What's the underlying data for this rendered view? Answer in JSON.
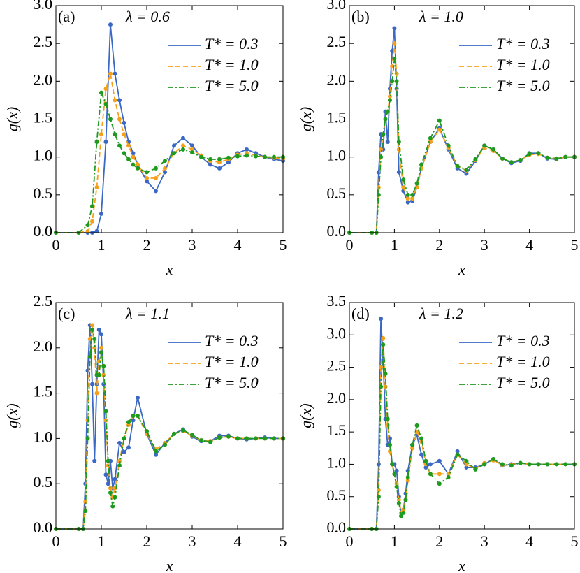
{
  "chart_data": [
    {
      "type": "line",
      "label": "(a)",
      "annotation": "λ = 0.6",
      "xlabel": "x",
      "ylabel": "g(x)",
      "xlim": [
        0,
        5
      ],
      "xticks": [
        0,
        1,
        2,
        3,
        4,
        5
      ],
      "ylim": [
        0,
        3
      ],
      "yticks": [
        {
          "value": 0,
          "label": "0.0"
        },
        {
          "value": 0.5,
          "label": "0.5"
        },
        {
          "value": 1,
          "label": "1.0"
        },
        {
          "value": 1.5,
          "label": "1.5"
        },
        {
          "value": 2,
          "label": "2.0"
        },
        {
          "value": 2.5,
          "label": "2.5"
        },
        {
          "value": 3,
          "label": "3.0"
        }
      ],
      "x": [
        0,
        0.5,
        0.7,
        0.8,
        0.9,
        1.0,
        1.1,
        1.2,
        1.3,
        1.4,
        1.5,
        1.6,
        1.7,
        1.8,
        2.0,
        2.2,
        2.4,
        2.6,
        2.8,
        3.0,
        3.2,
        3.4,
        3.6,
        3.8,
        4.0,
        4.2,
        4.4,
        4.6,
        4.8,
        5.0
      ],
      "series": [
        {
          "name": "T* = 0.3",
          "color": "#3a68c4",
          "style": "solid",
          "values": [
            0,
            0,
            0,
            0,
            0.02,
            0.25,
            1.2,
            2.75,
            2.1,
            1.75,
            1.45,
            1.2,
            1.05,
            0.9,
            0.68,
            0.55,
            0.8,
            1.15,
            1.25,
            1.15,
            1.0,
            0.9,
            0.85,
            0.93,
            1.05,
            1.1,
            1.05,
            1.0,
            0.97,
            0.95
          ]
        },
        {
          "name": "T* = 1.0",
          "color": "#f5a01a",
          "style": "dashed",
          "values": [
            0,
            0,
            0.02,
            0.15,
            0.6,
            1.3,
            1.9,
            2.1,
            1.75,
            1.5,
            1.3,
            1.15,
            1.0,
            0.9,
            0.72,
            0.72,
            0.85,
            1.05,
            1.15,
            1.1,
            1.02,
            0.95,
            0.93,
            0.97,
            1.03,
            1.05,
            1.02,
            1.0,
            0.99,
            0.98
          ]
        },
        {
          "name": "T* = 5.0",
          "color": "#1e9a1e",
          "style": "dashdot",
          "values": [
            0,
            0,
            0.1,
            0.35,
            1.2,
            1.85,
            1.7,
            1.5,
            1.3,
            1.15,
            1.05,
            0.97,
            0.9,
            0.85,
            0.8,
            0.85,
            0.95,
            1.05,
            1.1,
            1.06,
            1.0,
            0.97,
            0.97,
            0.99,
            1.01,
            1.02,
            1.01,
            1.0,
            1.0,
            1.0
          ]
        }
      ]
    },
    {
      "type": "line",
      "label": "(b)",
      "annotation": "λ = 1.0",
      "xlabel": "x",
      "ylabel": "g(x)",
      "xlim": [
        0,
        5
      ],
      "xticks": [
        0,
        1,
        2,
        3,
        4,
        5
      ],
      "ylim": [
        0,
        3
      ],
      "yticks": [
        {
          "value": 0,
          "label": "0.0"
        },
        {
          "value": 0.5,
          "label": "0.5"
        },
        {
          "value": 1,
          "label": "1.0"
        },
        {
          "value": 1.5,
          "label": "1.5"
        },
        {
          "value": 2,
          "label": "2.0"
        },
        {
          "value": 2.5,
          "label": "2.5"
        },
        {
          "value": 3,
          "label": "3.0"
        }
      ],
      "x": [
        0,
        0.5,
        0.6,
        0.65,
        0.7,
        0.75,
        0.8,
        0.85,
        0.9,
        0.95,
        1.0,
        1.05,
        1.1,
        1.2,
        1.3,
        1.4,
        1.5,
        1.6,
        1.8,
        2.0,
        2.2,
        2.4,
        2.6,
        2.8,
        3.0,
        3.2,
        3.4,
        3.6,
        3.8,
        4.0,
        4.2,
        4.4,
        4.6,
        4.8,
        5.0
      ],
      "series": [
        {
          "name": "T* = 0.3",
          "color": "#3a68c4",
          "style": "solid",
          "values": [
            0,
            0,
            0,
            0.8,
            1.3,
            1.1,
            1.6,
            1.2,
            1.9,
            2.4,
            2.7,
            1.9,
            0.8,
            0.55,
            0.4,
            0.42,
            0.6,
            0.85,
            1.2,
            1.38,
            1.1,
            0.85,
            0.78,
            0.95,
            1.15,
            1.1,
            0.98,
            0.92,
            0.95,
            1.05,
            1.05,
            0.98,
            0.97,
            1.0,
            1.0
          ]
        },
        {
          "name": "T* = 1.0",
          "color": "#f5a01a",
          "style": "dashed",
          "values": [
            0,
            0,
            0,
            0.6,
            1.1,
            1.3,
            1.5,
            1.6,
            1.8,
            2.2,
            2.5,
            2.1,
            1.1,
            0.6,
            0.45,
            0.45,
            0.6,
            0.85,
            1.2,
            1.36,
            1.12,
            0.88,
            0.82,
            0.96,
            1.12,
            1.08,
            0.98,
            0.93,
            0.96,
            1.03,
            1.04,
            0.99,
            0.98,
            1.0,
            1.0
          ]
        },
        {
          "name": "T* = 5.0",
          "color": "#1e9a1e",
          "style": "dashdot",
          "values": [
            0,
            0,
            0,
            0.5,
            1.0,
            1.3,
            1.5,
            1.6,
            1.75,
            2.0,
            2.3,
            2.0,
            1.2,
            0.7,
            0.5,
            0.5,
            0.65,
            0.9,
            1.25,
            1.48,
            1.15,
            0.88,
            0.83,
            0.97,
            1.15,
            1.1,
            0.98,
            0.93,
            0.96,
            1.04,
            1.05,
            0.99,
            0.98,
            1.0,
            1.0
          ]
        }
      ]
    },
    {
      "type": "line",
      "label": "(c)",
      "annotation": "λ = 1.1",
      "xlabel": "x",
      "ylabel": "g(x)",
      "xlim": [
        0,
        5
      ],
      "xticks": [
        0,
        1,
        2,
        3,
        4,
        5
      ],
      "ylim": [
        0,
        2.5
      ],
      "yticks": [
        {
          "value": 0,
          "label": "0.0"
        },
        {
          "value": 0.5,
          "label": "0.5"
        },
        {
          "value": 1,
          "label": "1.0"
        },
        {
          "value": 1.5,
          "label": "1.5"
        },
        {
          "value": 2,
          "label": "2.0"
        },
        {
          "value": 2.5,
          "label": "2.5"
        }
      ],
      "x": [
        0,
        0.5,
        0.6,
        0.65,
        0.7,
        0.75,
        0.8,
        0.85,
        0.9,
        0.95,
        1.0,
        1.05,
        1.1,
        1.15,
        1.2,
        1.25,
        1.3,
        1.4,
        1.5,
        1.6,
        1.7,
        1.8,
        2.0,
        2.2,
        2.4,
        2.6,
        2.8,
        3.0,
        3.2,
        3.4,
        3.6,
        3.8,
        4.0,
        4.2,
        4.4,
        4.6,
        4.8,
        5.0
      ],
      "series": [
        {
          "name": "T* = 0.3",
          "color": "#3a68c4",
          "style": "solid",
          "values": [
            0,
            0,
            0,
            0.5,
            1.75,
            2.25,
            1.6,
            0.75,
            1.6,
            2.2,
            2.15,
            1.6,
            0.6,
            0.5,
            0.75,
            0.45,
            0.55,
            0.95,
            0.85,
            0.9,
            1.2,
            1.45,
            1.05,
            0.82,
            0.95,
            1.05,
            1.1,
            1.02,
            0.97,
            0.97,
            1.03,
            1.03,
            1.0,
            0.99,
            1.0,
            1.01,
            1.0,
            1.0
          ]
        },
        {
          "name": "T* = 1.0",
          "color": "#f5a01a",
          "style": "dashed",
          "values": [
            0,
            0,
            0,
            0.3,
            1.2,
            2.1,
            2.25,
            2.0,
            1.5,
            1.85,
            2.0,
            1.7,
            1.2,
            0.7,
            0.45,
            0.35,
            0.45,
            0.75,
            1.0,
            1.15,
            1.25,
            1.25,
            1.05,
            0.88,
            0.95,
            1.05,
            1.08,
            1.03,
            0.98,
            0.97,
            1.01,
            1.02,
            1.0,
            1.0,
            1.0,
            1.0,
            1.0,
            1.0
          ]
        },
        {
          "name": "T* = 5.0",
          "color": "#1e9a1e",
          "style": "dashdot",
          "values": [
            0,
            0,
            0,
            0.2,
            1.0,
            1.9,
            2.2,
            2.1,
            1.7,
            1.7,
            1.95,
            1.8,
            1.3,
            0.75,
            0.4,
            0.25,
            0.35,
            0.7,
            1.0,
            1.18,
            1.25,
            1.25,
            1.08,
            0.86,
            0.93,
            1.05,
            1.09,
            1.04,
            0.98,
            0.96,
            1.01,
            1.02,
            1.0,
            1.0,
            1.0,
            1.0,
            1.0,
            1.0
          ]
        }
      ]
    },
    {
      "type": "line",
      "label": "(d)",
      "annotation": "λ = 1.2",
      "xlabel": "x",
      "ylabel": "g(x)",
      "xlim": [
        0,
        5
      ],
      "xticks": [
        0,
        1,
        2,
        3,
        4,
        5
      ],
      "ylim": [
        0,
        3.5
      ],
      "yticks": [
        {
          "value": 0,
          "label": "0.0"
        },
        {
          "value": 0.5,
          "label": "0.5"
        },
        {
          "value": 1,
          "label": "1.0"
        },
        {
          "value": 1.5,
          "label": "1.5"
        },
        {
          "value": 2,
          "label": "2.0"
        },
        {
          "value": 2.5,
          "label": "2.5"
        },
        {
          "value": 3,
          "label": "3.0"
        },
        {
          "value": 3.5,
          "label": "3.5"
        }
      ],
      "x": [
        0,
        0.5,
        0.6,
        0.65,
        0.7,
        0.75,
        0.8,
        0.85,
        0.9,
        0.95,
        1.0,
        1.05,
        1.1,
        1.15,
        1.2,
        1.25,
        1.3,
        1.4,
        1.5,
        1.6,
        1.7,
        1.8,
        2.0,
        2.2,
        2.4,
        2.6,
        2.8,
        3.0,
        3.2,
        3.4,
        3.6,
        3.8,
        4.0,
        4.2,
        4.4,
        4.6,
        4.8,
        5.0
      ],
      "series": [
        {
          "name": "T* = 0.3",
          "color": "#3a68c4",
          "style": "solid",
          "values": [
            0,
            0,
            0,
            1.0,
            3.25,
            2.6,
            1.7,
            1.3,
            1.4,
            1.0,
            1.0,
            0.9,
            0.5,
            0.2,
            0.3,
            0.55,
            0.9,
            1.3,
            1.45,
            1.15,
            0.95,
            1.0,
            1.05,
            0.85,
            1.2,
            0.95,
            0.95,
            1.0,
            1.08,
            0.98,
            1.0,
            1.02,
            1.0,
            1.0,
            1.0,
            1.0,
            1.0,
            1.0
          ]
        },
        {
          "name": "T* = 1.0",
          "color": "#f5a01a",
          "style": "dashed",
          "values": [
            0,
            0,
            0,
            0.6,
            2.5,
            2.95,
            2.2,
            1.6,
            1.2,
            1.0,
            0.85,
            0.7,
            0.45,
            0.25,
            0.3,
            0.45,
            0.75,
            1.25,
            1.5,
            1.35,
            1.0,
            0.85,
            0.85,
            0.85,
            1.15,
            1.0,
            0.93,
            1.02,
            1.06,
            0.99,
            0.99,
            1.02,
            1.0,
            1.0,
            1.0,
            1.0,
            1.0,
            1.0
          ]
        },
        {
          "name": "T* = 5.0",
          "color": "#1e9a1e",
          "style": "dashdot",
          "values": [
            0,
            0,
            0,
            0.5,
            2.2,
            2.85,
            2.4,
            1.7,
            1.3,
            1.0,
            0.85,
            0.65,
            0.4,
            0.2,
            0.25,
            0.45,
            0.8,
            1.3,
            1.6,
            1.4,
            1.05,
            0.85,
            0.7,
            0.8,
            1.15,
            1.05,
            0.92,
            1.0,
            1.08,
            1.0,
            0.98,
            1.02,
            1.0,
            1.0,
            1.0,
            1.0,
            1.0,
            1.0
          ]
        }
      ]
    }
  ]
}
